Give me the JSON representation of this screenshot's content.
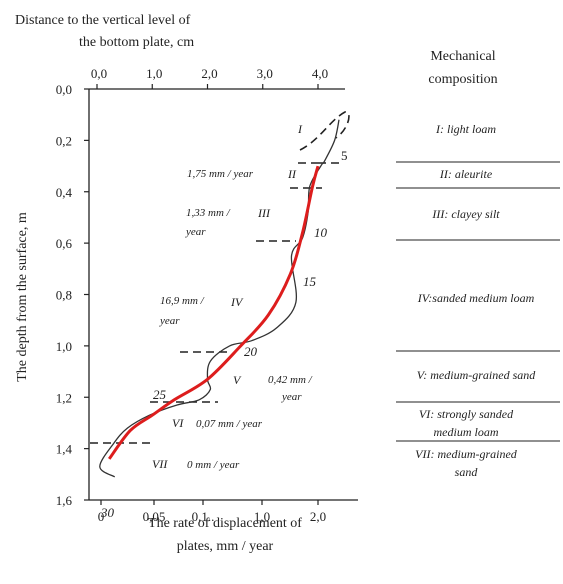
{
  "chart_data": {
    "type": "line",
    "top_axis": {
      "label_line1": "Distance to the vertical level of",
      "label_line2": "the bottom plate, cm",
      "ticks": [
        "0,0",
        "1,0",
        "2,0",
        "3,0",
        "4,0"
      ],
      "range": [
        0.0,
        4.0
      ]
    },
    "left_axis": {
      "label": "The depth from the surface, m",
      "ticks": [
        "0,0",
        "0,2",
        "0,4",
        "0,6",
        "0,8",
        "1,0",
        "1,2",
        "1,4",
        "1,6"
      ],
      "range": [
        0.0,
        1.6
      ]
    },
    "bottom_axis": {
      "label_line1": "The rate of displacement of",
      "label_line2": "plates, mm / year",
      "ticks": [
        "0",
        "0,05",
        "0,1..",
        "1,0",
        "2,0"
      ]
    },
    "series": [
      {
        "values_note": "",
        "x": [
          0.22,
          0.6,
          1.0,
          1.4,
          2.0,
          2.6,
          3.1,
          3.5,
          3.72,
          3.9,
          4.0
        ],
        "y": [
          1.44,
          1.33,
          1.27,
          1.21,
          1.13,
          1.0,
          0.88,
          0.72,
          0.56,
          0.38,
          0.3
        ],
        "color": "#dd1d1d"
      },
      {
        "x": [
          0.32,
          0.05,
          0.3,
          0.55,
          0.95,
          1.45,
          1.85,
          2.05,
          2.0,
          2.05,
          2.4,
          2.8,
          3.25,
          3.6,
          3.52,
          3.72,
          3.82,
          3.85,
          4.05,
          4.12,
          4.3,
          4.38
        ],
        "y": [
          1.51,
          1.47,
          1.38,
          1.32,
          1.27,
          1.23,
          1.21,
          1.17,
          1.13,
          1.06,
          1.0,
          0.98,
          0.93,
          0.83,
          0.65,
          0.58,
          0.48,
          0.38,
          0.3,
          0.28,
          0.2,
          0.12
        ],
        "color": "#333333"
      }
    ],
    "data_labels": [
      "5",
      "10",
      "15",
      "20",
      "25",
      "30"
    ],
    "zones": [
      "I",
      "II",
      "III",
      "IV",
      "V",
      "VI",
      "VII"
    ],
    "rates": [
      "1,75 mm / year",
      "1,33 mm /",
      "year",
      "16,9 mm /",
      "year",
      "0,42 mm /",
      "year",
      "0,07 mm / year",
      "0 mm / year"
    ]
  },
  "composition": {
    "title_line1": "Mechanical",
    "title_line2": "composition",
    "layers": [
      {
        "line1": "I: light loam"
      },
      {
        "line1": "II: aleurite"
      },
      {
        "line1": "III: clayey silt"
      },
      {
        "line1": "IV:sanded medium loam"
      },
      {
        "line1": "V: medium-grained sand"
      },
      {
        "line1": "VI: strongly sanded",
        "line2": "medium loam"
      },
      {
        "line1": "VII: medium-grained",
        "line2": "sand"
      }
    ]
  },
  "colors": {
    "model_curve": "#dd1d1d",
    "measured_curve": "#333333",
    "axis": "#222222"
  }
}
